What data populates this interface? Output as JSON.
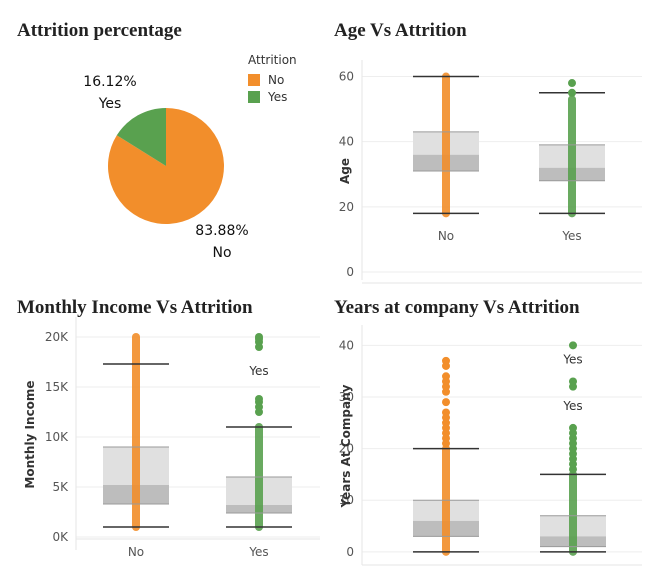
{
  "colors": {
    "no": "#f28e2b",
    "yes": "#59a14f",
    "whisker": "#333333",
    "box_upper": "#e0e0e0",
    "box_lower": "#bdbdbd",
    "grid": "#eeeeee"
  },
  "chart_data": [
    {
      "id": "pie",
      "type": "pie",
      "title": "Attrition percentage",
      "legend": {
        "title": "Attrition",
        "position": "top-right",
        "items": [
          "No",
          "Yes"
        ]
      },
      "slices": [
        {
          "name": "No",
          "value": 83.88,
          "label": "83.88%",
          "sublabel": "No"
        },
        {
          "name": "Yes",
          "value": 16.12,
          "label": "16.12%",
          "sublabel": "Yes"
        }
      ]
    },
    {
      "id": "age",
      "type": "box",
      "title": "Age Vs Attrition",
      "ylabel": "Age",
      "ylim": [
        0,
        62
      ],
      "yticks": [
        0,
        20,
        40,
        60
      ],
      "ytick_labels": [
        "0",
        "20",
        "40",
        "60"
      ],
      "categories": [
        "No",
        "Yes"
      ],
      "boxes": [
        {
          "name": "No",
          "min": 18,
          "q1": 31,
          "median": 36,
          "q3": 43,
          "max": 60,
          "points_from": 18,
          "points_to": 60,
          "outliers": []
        },
        {
          "name": "Yes",
          "min": 18,
          "q1": 28,
          "median": 32,
          "q3": 39,
          "max": 55,
          "points_from": 18,
          "points_to": 53,
          "outliers": [
            55,
            58
          ]
        }
      ],
      "annotations": []
    },
    {
      "id": "income",
      "type": "box",
      "title": "Monthly Income Vs Attrition",
      "ylabel": "Monthly Income",
      "ylim": [
        -500,
        21000
      ],
      "yticks": [
        0,
        5000,
        10000,
        15000,
        20000
      ],
      "ytick_labels": [
        "0K",
        "5K",
        "10K",
        "15K",
        "20K"
      ],
      "categories": [
        "No",
        "Yes"
      ],
      "boxes": [
        {
          "name": "No",
          "min": 1000,
          "q1": 3300,
          "median": 5200,
          "q3": 9000,
          "max": 17300,
          "points_from": 1000,
          "points_to": 20000,
          "outliers": []
        },
        {
          "name": "Yes",
          "min": 1000,
          "q1": 2400,
          "median": 3200,
          "q3": 6000,
          "max": 11000,
          "points_from": 1000,
          "points_to": 11000,
          "outliers": [
            12500,
            13000,
            13500,
            13800,
            19000,
            19500,
            19800,
            20000
          ]
        }
      ],
      "annotations": [
        {
          "text": "Yes",
          "category": "Yes",
          "y": 16200
        }
      ]
    },
    {
      "id": "years",
      "type": "box",
      "title": "Years at company Vs Attrition",
      "ylabel": "Years At Company",
      "ylim": [
        -1,
        42
      ],
      "yticks": [
        0,
        10,
        20,
        30,
        40
      ],
      "ytick_labels": [
        "0",
        "10",
        "20",
        "30",
        "40"
      ],
      "categories": [
        "No",
        "Yes"
      ],
      "boxes": [
        {
          "name": "No",
          "min": 0,
          "q1": 3,
          "median": 6,
          "q3": 10,
          "max": 20,
          "points_from": 0,
          "points_to": 20,
          "outliers": [
            21,
            22,
            23,
            24,
            25,
            26,
            27,
            29,
            31,
            32,
            33,
            34,
            36,
            37
          ]
        },
        {
          "name": "Yes",
          "min": 0,
          "q1": 1,
          "median": 3,
          "q3": 7,
          "max": 15,
          "points_from": 0,
          "points_to": 15,
          "outliers": [
            16,
            17,
            18,
            19,
            20,
            21,
            22,
            23,
            24,
            32,
            33,
            40
          ]
        }
      ],
      "annotations": [
        {
          "text": "Yes",
          "category": "Yes",
          "y": 36.5
        },
        {
          "text": "Yes",
          "category": "Yes",
          "y": 27.5
        }
      ]
    }
  ]
}
